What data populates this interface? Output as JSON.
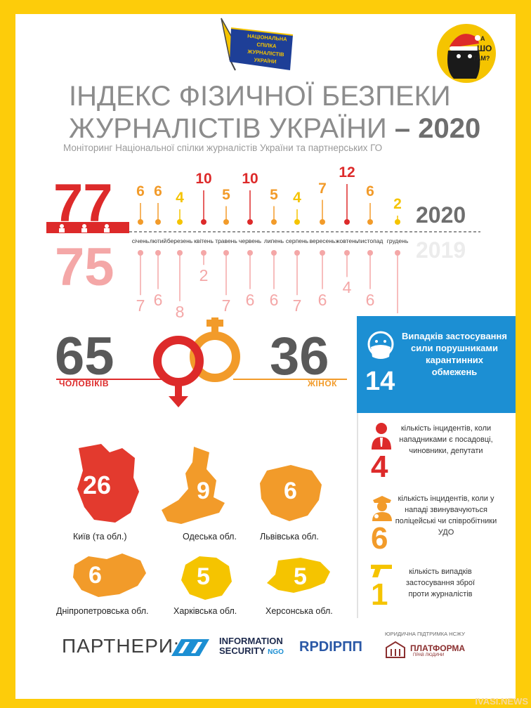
{
  "title": {
    "line1": "ІНДЕКС ФІЗИЧНОЇ БЕЗПЕКИ",
    "line2_prefix": "ЖУРНАЛІСТІВ УКРАЇНИ",
    "line2_dash": " – ",
    "line2_year": "2020"
  },
  "subtitle": "Моніторинг Національної спілки журналістів України та партнерських ГО",
  "logos": {
    "nsju": "НАЦІОНАЛЬНА СПІЛКА ЖУРНАЛІСТІВ УКРАЇНИ",
    "ashotam_line1": "А",
    "ashotam_line2": "ШО",
    "ashotam_line3": "ТАМ?"
  },
  "chart_data": {
    "type": "bar",
    "categories": [
      "січень",
      "лютий",
      "березень",
      "квітень",
      "травень",
      "червень",
      "липень",
      "серпень",
      "вересень",
      "жовтень",
      "листопад",
      "грудень"
    ],
    "series": [
      {
        "name": "2020",
        "values": [
          6,
          6,
          4,
          10,
          5,
          10,
          5,
          4,
          7,
          12,
          6,
          2
        ],
        "total": "77"
      },
      {
        "name": "2019",
        "values": [
          7,
          6,
          8,
          2,
          7,
          6,
          6,
          7,
          6,
          4,
          6,
          10
        ],
        "total": "75"
      }
    ],
    "colors": [
      "#f29b2a",
      "#f29b2a",
      "#f5c400",
      "#dd2a2a",
      "#f29b2a",
      "#dd2a2a",
      "#f29b2a",
      "#f5c400",
      "#f29b2a",
      "#dd2a2a",
      "#f29b2a",
      "#f5c400"
    ],
    "color_2019": "#f4a7a7"
  },
  "gender": {
    "men_value": "65",
    "men_label": "ЧОЛОВІКІВ",
    "women_value": "36",
    "women_label": "ЖІНОК"
  },
  "quarantine": {
    "text": "Випадків застосування сили порушниками карантинних обмежень",
    "value": "14",
    "icon": "mask-face-icon"
  },
  "stats": [
    {
      "text": "кількість інцидентів, коли нападниками є посадовці, чиновники, депутати",
      "value": "4",
      "icon": "official-icon",
      "color": "#dd2a2a"
    },
    {
      "text": "кількість інцидентів, коли у нападі звинувачуються поліцейські чи співробітники УДО",
      "value": "6",
      "icon": "police-icon",
      "color": "#f29b2a"
    },
    {
      "text": "кількість випадків застосування зброї проти журналістів",
      "value": "1",
      "icon": "gun-icon",
      "color": "#f5c400"
    }
  ],
  "regions": [
    {
      "label": "Київ (та обл.)",
      "value": "26",
      "color": "#e33a2e"
    },
    {
      "label": "Одеська обл.",
      "value": "9",
      "color": "#f29b2a"
    },
    {
      "label": "Львівська обл.",
      "value": "6",
      "color": "#f29b2a"
    },
    {
      "label": "Дніпропетровська обл.",
      "value": "6",
      "color": "#f29b2a"
    },
    {
      "label": "Харківська обл.",
      "value": "5",
      "color": "#f5c400"
    },
    {
      "label": "Херсонська обл.",
      "value": "5",
      "color": "#f5c400"
    }
  ],
  "partners": {
    "label": "ПАРТНЕРИ:",
    "p1": "INFORMATION",
    "p1b": "SECURITY",
    "p1c": "NGO",
    "p2": "RPDIРПП",
    "legal": "ЮРИДИЧНА ПІДТРИМКА НСЖУ",
    "p3": "ПЛАТФОРМА",
    "p3b": "ПРАВ ЛЮДИНИ"
  },
  "watermark": "IVASI.NEWS"
}
